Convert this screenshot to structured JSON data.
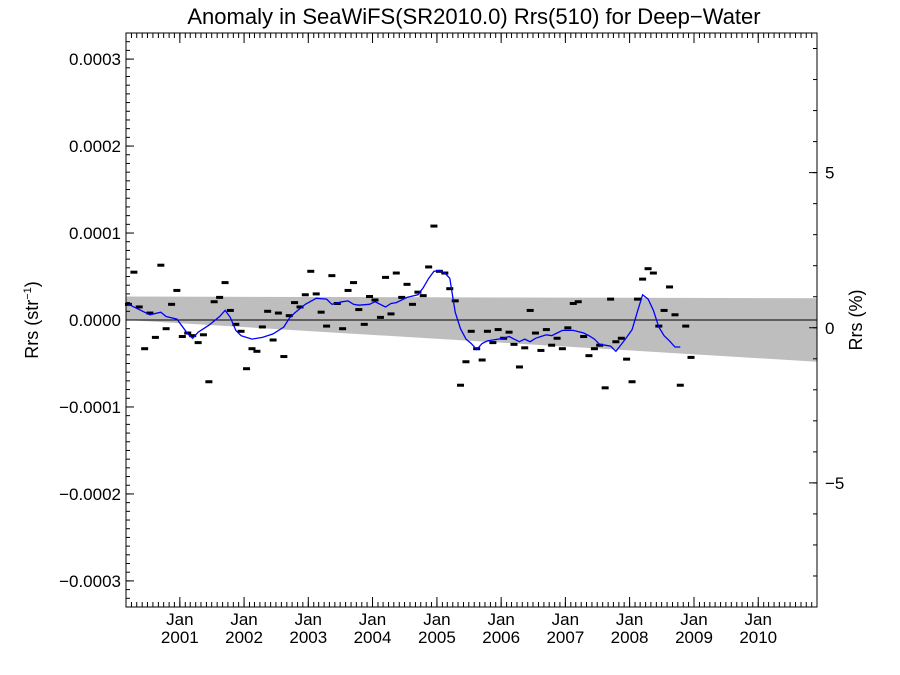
{
  "chart_data": {
    "type": "scatter",
    "title": "Anomaly in SeaWiFS(SR2010.0) Rrs(510) for Deep−Water",
    "ylabel_left": "Rrs (str",
    "ylabel_left_sup": "−1",
    "ylabel_left_close": ")",
    "ylabel_right": "Rrs (%)",
    "xlim": [
      "2000-03-01",
      "2010-12-01"
    ],
    "ylim_left": [
      -0.00033,
      0.00033
    ],
    "ylim_right": [
      -9.0,
      9.5
    ],
    "yticks_left": [
      {
        "value": 0.0003,
        "label": "0.0003"
      },
      {
        "value": 0.0002,
        "label": "0.0002"
      },
      {
        "value": 0.0001,
        "label": "0.0001"
      },
      {
        "value": 0.0,
        "label": "0.0000"
      },
      {
        "value": -0.0001,
        "label": "−0.0001"
      },
      {
        "value": -0.0002,
        "label": "−0.0002"
      },
      {
        "value": -0.0003,
        "label": "−0.0003"
      }
    ],
    "yticks_right": [
      {
        "value": 5,
        "label": "5"
      },
      {
        "value": 0,
        "label": "0"
      },
      {
        "value": -5,
        "label": "−5"
      }
    ],
    "xticks": [
      {
        "date": "2001-01-01",
        "month": "Jan",
        "year": "2001"
      },
      {
        "date": "2002-01-01",
        "month": "Jan",
        "year": "2002"
      },
      {
        "date": "2003-01-01",
        "month": "Jan",
        "year": "2003"
      },
      {
        "date": "2004-01-01",
        "month": "Jan",
        "year": "2004"
      },
      {
        "date": "2005-01-01",
        "month": "Jan",
        "year": "2005"
      },
      {
        "date": "2006-01-01",
        "month": "Jan",
        "year": "2006"
      },
      {
        "date": "2007-01-01",
        "month": "Jan",
        "year": "2007"
      },
      {
        "date": "2008-01-01",
        "month": "Jan",
        "year": "2008"
      },
      {
        "date": "2009-01-01",
        "month": "Jan",
        "year": "2009"
      },
      {
        "date": "2010-01-01",
        "month": "Jan",
        "year": "2010"
      }
    ],
    "uncertainty_band": {
      "upper": [
        {
          "x": "2000-03-01",
          "y": 2.7e-05
        },
        {
          "x": "2010-12-01",
          "y": 2.5e-05
        }
      ],
      "lower": [
        {
          "x": "2000-03-01",
          "y": 0.0
        },
        {
          "x": "2010-12-01",
          "y": -4.8e-05
        }
      ]
    },
    "zero_line": 0.0,
    "points": [
      {
        "x": "2000-03",
        "y": 1.8e-05
      },
      {
        "x": "2000-04",
        "y": 5.5e-05
      },
      {
        "x": "2000-05",
        "y": 1.5e-05
      },
      {
        "x": "2000-06",
        "y": -3.3e-05
      },
      {
        "x": "2000-07",
        "y": 8e-06
      },
      {
        "x": "2000-08",
        "y": -2e-05
      },
      {
        "x": "2000-09",
        "y": 6.3e-05
      },
      {
        "x": "2000-10",
        "y": -1e-05
      },
      {
        "x": "2000-11",
        "y": 1.8e-05
      },
      {
        "x": "2000-12",
        "y": 3.4e-05
      },
      {
        "x": "2001-01",
        "y": -1.9e-05
      },
      {
        "x": "2001-02",
        "y": -1.5e-05
      },
      {
        "x": "2001-03",
        "y": -1.8e-05
      },
      {
        "x": "2001-04",
        "y": -2.6e-05
      },
      {
        "x": "2001-05",
        "y": -1.7e-05
      },
      {
        "x": "2001-06",
        "y": -7.1e-05
      },
      {
        "x": "2001-07",
        "y": 2.1e-05
      },
      {
        "x": "2001-08",
        "y": 2.6e-05
      },
      {
        "x": "2001-09",
        "y": 4.3e-05
      },
      {
        "x": "2001-10",
        "y": 1.1e-05
      },
      {
        "x": "2001-11",
        "y": -5e-06
      },
      {
        "x": "2001-12",
        "y": -1.3e-05
      },
      {
        "x": "2002-01",
        "y": -5.6e-05
      },
      {
        "x": "2002-02",
        "y": -3.3e-05
      },
      {
        "x": "2002-03",
        "y": -3.6e-05
      },
      {
        "x": "2002-04",
        "y": -8e-06
      },
      {
        "x": "2002-05",
        "y": 1e-05
      },
      {
        "x": "2002-06",
        "y": -2.3e-05
      },
      {
        "x": "2002-07",
        "y": 8e-06
      },
      {
        "x": "2002-08",
        "y": -4.2e-05
      },
      {
        "x": "2002-09",
        "y": 5e-06
      },
      {
        "x": "2002-10",
        "y": 2e-05
      },
      {
        "x": "2002-11",
        "y": 1.5e-05
      },
      {
        "x": "2002-12",
        "y": 2.9e-05
      },
      {
        "x": "2003-01",
        "y": 5.6e-05
      },
      {
        "x": "2003-02",
        "y": 3e-05
      },
      {
        "x": "2003-03",
        "y": 9e-06
      },
      {
        "x": "2003-04",
        "y": -7e-06
      },
      {
        "x": "2003-05",
        "y": 5.1e-05
      },
      {
        "x": "2003-06",
        "y": 1.9e-05
      },
      {
        "x": "2003-07",
        "y": -1e-05
      },
      {
        "x": "2003-08",
        "y": 3.4e-05
      },
      {
        "x": "2003-09",
        "y": 4.3e-05
      },
      {
        "x": "2003-10",
        "y": 1.2e-05
      },
      {
        "x": "2003-11",
        "y": -5e-06
      },
      {
        "x": "2003-12",
        "y": 2.7e-05
      },
      {
        "x": "2004-01",
        "y": 2.3e-05
      },
      {
        "x": "2004-02",
        "y": 3e-06
      },
      {
        "x": "2004-03",
        "y": 4.9e-05
      },
      {
        "x": "2004-04",
        "y": 7e-06
      },
      {
        "x": "2004-05",
        "y": 5.4e-05
      },
      {
        "x": "2004-06",
        "y": 2.6e-05
      },
      {
        "x": "2004-07",
        "y": 4.1e-05
      },
      {
        "x": "2004-08",
        "y": 1.8e-05
      },
      {
        "x": "2004-09",
        "y": 3.2e-05
      },
      {
        "x": "2004-10",
        "y": 2.8e-05
      },
      {
        "x": "2004-11",
        "y": 6.1e-05
      },
      {
        "x": "2004-12",
        "y": 0.000108
      },
      {
        "x": "2005-01",
        "y": 5.6e-05
      },
      {
        "x": "2005-02",
        "y": 5.4e-05
      },
      {
        "x": "2005-03",
        "y": 3.6e-05
      },
      {
        "x": "2005-04",
        "y": 2.2e-05
      },
      {
        "x": "2005-05",
        "y": -7.5e-05
      },
      {
        "x": "2005-06",
        "y": -4.8e-05
      },
      {
        "x": "2005-07",
        "y": -1.3e-05
      },
      {
        "x": "2005-08",
        "y": -3.3e-05
      },
      {
        "x": "2005-09",
        "y": -4.6e-05
      },
      {
        "x": "2005-10",
        "y": -1.3e-05
      },
      {
        "x": "2005-11",
        "y": -2.6e-05
      },
      {
        "x": "2005-12",
        "y": -1.1e-05
      },
      {
        "x": "2006-01",
        "y": -2.1e-05
      },
      {
        "x": "2006-02",
        "y": -1.4e-05
      },
      {
        "x": "2006-03",
        "y": -2.8e-05
      },
      {
        "x": "2006-04",
        "y": -5.4e-05
      },
      {
        "x": "2006-05",
        "y": -3.2e-05
      },
      {
        "x": "2006-06",
        "y": 1.1e-05
      },
      {
        "x": "2006-07",
        "y": -1.5e-05
      },
      {
        "x": "2006-08",
        "y": -3.5e-05
      },
      {
        "x": "2006-09",
        "y": -1.1e-05
      },
      {
        "x": "2006-10",
        "y": -2.9e-05
      },
      {
        "x": "2006-11",
        "y": -2.1e-05
      },
      {
        "x": "2006-12",
        "y": -3.3e-05
      },
      {
        "x": "2007-01",
        "y": -9e-06
      },
      {
        "x": "2007-02",
        "y": 1.9e-05
      },
      {
        "x": "2007-03",
        "y": 2.1e-05
      },
      {
        "x": "2007-04",
        "y": -1.9e-05
      },
      {
        "x": "2007-05",
        "y": -4.1e-05
      },
      {
        "x": "2007-06",
        "y": -3.3e-05
      },
      {
        "x": "2007-07",
        "y": -2.9e-05
      },
      {
        "x": "2007-08",
        "y": -7.8e-05
      },
      {
        "x": "2007-09",
        "y": 2.4e-05
      },
      {
        "x": "2007-10",
        "y": -2.5e-05
      },
      {
        "x": "2007-11",
        "y": -2.1e-05
      },
      {
        "x": "2007-12",
        "y": -4.5e-05
      },
      {
        "x": "2008-01",
        "y": -7.1e-05
      },
      {
        "x": "2008-02",
        "y": 2.4e-05
      },
      {
        "x": "2008-03",
        "y": 4.7e-05
      },
      {
        "x": "2008-04",
        "y": 5.9e-05
      },
      {
        "x": "2008-05",
        "y": 5.4e-05
      },
      {
        "x": "2008-06",
        "y": -7e-06
      },
      {
        "x": "2008-07",
        "y": 1.1e-05
      },
      {
        "x": "2008-08",
        "y": 3.8e-05
      },
      {
        "x": "2008-09",
        "y": 6e-06
      },
      {
        "x": "2008-10",
        "y": -7.5e-05
      },
      {
        "x": "2008-11",
        "y": -7e-06
      },
      {
        "x": "2008-12",
        "y": -4.3e-05
      }
    ],
    "smoothed_line": [
      {
        "x": "2000-03",
        "y": 1.8e-05
      },
      {
        "x": "2000-05",
        "y": 1.2e-05
      },
      {
        "x": "2000-07",
        "y": 6e-06
      },
      {
        "x": "2000-09",
        "y": 9e-06
      },
      {
        "x": "2000-10",
        "y": 4e-06
      },
      {
        "x": "2000-12",
        "y": 1e-06
      },
      {
        "x": "2001-02",
        "y": -1.6e-05
      },
      {
        "x": "2001-03",
        "y": -2.1e-05
      },
      {
        "x": "2001-04",
        "y": -1.4e-05
      },
      {
        "x": "2001-06",
        "y": -6e-06
      },
      {
        "x": "2001-08",
        "y": 4e-06
      },
      {
        "x": "2001-09",
        "y": 1.1e-05
      },
      {
        "x": "2001-10",
        "y": 3e-06
      },
      {
        "x": "2001-11",
        "y": -1.2e-05
      },
      {
        "x": "2001-12",
        "y": -1.8e-05
      },
      {
        "x": "2002-02",
        "y": -2.2e-05
      },
      {
        "x": "2002-04",
        "y": -2e-05
      },
      {
        "x": "2002-06",
        "y": -1.6e-05
      },
      {
        "x": "2002-08",
        "y": -8e-06
      },
      {
        "x": "2002-09",
        "y": 2e-06
      },
      {
        "x": "2002-10",
        "y": 8e-06
      },
      {
        "x": "2002-12",
        "y": 1.8e-05
      },
      {
        "x": "2003-02",
        "y": 2.5e-05
      },
      {
        "x": "2003-04",
        "y": 2.4e-05
      },
      {
        "x": "2003-05",
        "y": 1.8e-05
      },
      {
        "x": "2003-07",
        "y": 2.1e-05
      },
      {
        "x": "2003-08",
        "y": 2.2e-05
      },
      {
        "x": "2003-09",
        "y": 1.8e-05
      },
      {
        "x": "2003-10",
        "y": 1.7e-05
      },
      {
        "x": "2003-12",
        "y": 1.8e-05
      },
      {
        "x": "2004-01",
        "y": 2.1e-05
      },
      {
        "x": "2004-03",
        "y": 1.5e-05
      },
      {
        "x": "2004-04",
        "y": 1.9e-05
      },
      {
        "x": "2004-05",
        "y": 2e-05
      },
      {
        "x": "2004-07",
        "y": 2.6e-05
      },
      {
        "x": "2004-09",
        "y": 2.9e-05
      },
      {
        "x": "2004-10",
        "y": 3.7e-05
      },
      {
        "x": "2004-11",
        "y": 4.8e-05
      },
      {
        "x": "2004-12",
        "y": 5.6e-05
      },
      {
        "x": "2005-01",
        "y": 5.7e-05
      },
      {
        "x": "2005-02",
        "y": 5.4e-05
      },
      {
        "x": "2005-03",
        "y": 4.8e-05
      },
      {
        "x": "2005-04",
        "y": 9e-06
      },
      {
        "x": "2005-05",
        "y": -1e-05
      },
      {
        "x": "2005-06",
        "y": -2.2e-05
      },
      {
        "x": "2005-07",
        "y": -2.7e-05
      },
      {
        "x": "2005-08",
        "y": -3.4e-05
      },
      {
        "x": "2005-09",
        "y": -2.7e-05
      },
      {
        "x": "2005-10",
        "y": -2.4e-05
      },
      {
        "x": "2005-11",
        "y": -2.3e-05
      },
      {
        "x": "2005-12",
        "y": -2.2e-05
      },
      {
        "x": "2006-01",
        "y": -2.1e-05
      },
      {
        "x": "2006-02",
        "y": -1.9e-05
      },
      {
        "x": "2006-03",
        "y": -2.2e-05
      },
      {
        "x": "2006-04",
        "y": -2.5e-05
      },
      {
        "x": "2006-05",
        "y": -2.2e-05
      },
      {
        "x": "2006-06",
        "y": -2.5e-05
      },
      {
        "x": "2006-07",
        "y": -2.1e-05
      },
      {
        "x": "2006-08",
        "y": -1.9e-05
      },
      {
        "x": "2006-09",
        "y": -1.7e-05
      },
      {
        "x": "2006-10",
        "y": -1.8e-05
      },
      {
        "x": "2006-11",
        "y": -1.5e-05
      },
      {
        "x": "2006-12",
        "y": -1.2e-05
      },
      {
        "x": "2007-01",
        "y": -1.2e-05
      },
      {
        "x": "2007-02",
        "y": -1.2e-05
      },
      {
        "x": "2007-04",
        "y": -1.5e-05
      },
      {
        "x": "2007-05",
        "y": -1.8e-05
      },
      {
        "x": "2007-06",
        "y": -2.2e-05
      },
      {
        "x": "2007-07",
        "y": -2.8e-05
      },
      {
        "x": "2007-08",
        "y": -2.9e-05
      },
      {
        "x": "2007-09",
        "y": -3e-05
      },
      {
        "x": "2007-10",
        "y": -3.6e-05
      },
      {
        "x": "2007-11",
        "y": -2.8e-05
      },
      {
        "x": "2007-12",
        "y": -2e-05
      },
      {
        "x": "2008-01",
        "y": -1.1e-05
      },
      {
        "x": "2008-02",
        "y": 1e-05
      },
      {
        "x": "2008-03",
        "y": 2.9e-05
      },
      {
        "x": "2008-04",
        "y": 2.4e-05
      },
      {
        "x": "2008-05",
        "y": 1.1e-05
      },
      {
        "x": "2008-06",
        "y": -8e-06
      },
      {
        "x": "2008-07",
        "y": -1.8e-05
      },
      {
        "x": "2008-08",
        "y": -2.4e-05
      },
      {
        "x": "2008-09",
        "y": -3.1e-05
      },
      {
        "x": "2008-10",
        "y": -3.1e-05
      }
    ],
    "colors": {
      "band": "#bebebe",
      "smoothed_line": "#0000ff",
      "points": "#000000",
      "zero_line": "#000000"
    },
    "grid": false,
    "legend": "none"
  }
}
